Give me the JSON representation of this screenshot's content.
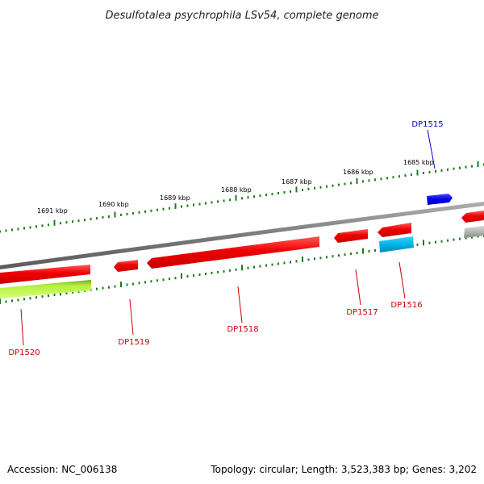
{
  "title": "Desulfotalea psychrophila LSv54, complete genome",
  "footer": {
    "accession": "Accession: NC_006138",
    "summary": "Topology: circular; Length: 3,523,383 bp; Genes: 3,202"
  },
  "colors": {
    "backbone": "#8c8c8c",
    "tick": "#1f7a1f",
    "gene_forward": "#0000ee",
    "gene_reverse": "#ee0000",
    "gene_cyan": "#00b4e6",
    "gene_lime": "#a6e62a",
    "gene_gray": "#b4b4b4",
    "label_forward": "#0000cc",
    "label_reverse": "#cc0000"
  },
  "scale_labels": [
    "1691 kbp",
    "1690 kbp",
    "1689 kbp",
    "1688 kbp",
    "1687 kbp",
    "1686 kbp",
    "1685 kbp"
  ],
  "genes": [
    {
      "label": "DP1515",
      "strand": "forward",
      "color": "gene_forward"
    },
    {
      "label": "DP1516",
      "strand": "reverse",
      "color": "gene_reverse"
    },
    {
      "label": "DP1517",
      "strand": "reverse",
      "color": "gene_reverse"
    },
    {
      "label": "DP1518",
      "strand": "reverse",
      "color": "gene_reverse"
    },
    {
      "label": "DP1519",
      "strand": "reverse",
      "color": "gene_reverse"
    },
    {
      "label": "DP1520",
      "strand": "reverse",
      "color": "gene_reverse"
    }
  ]
}
